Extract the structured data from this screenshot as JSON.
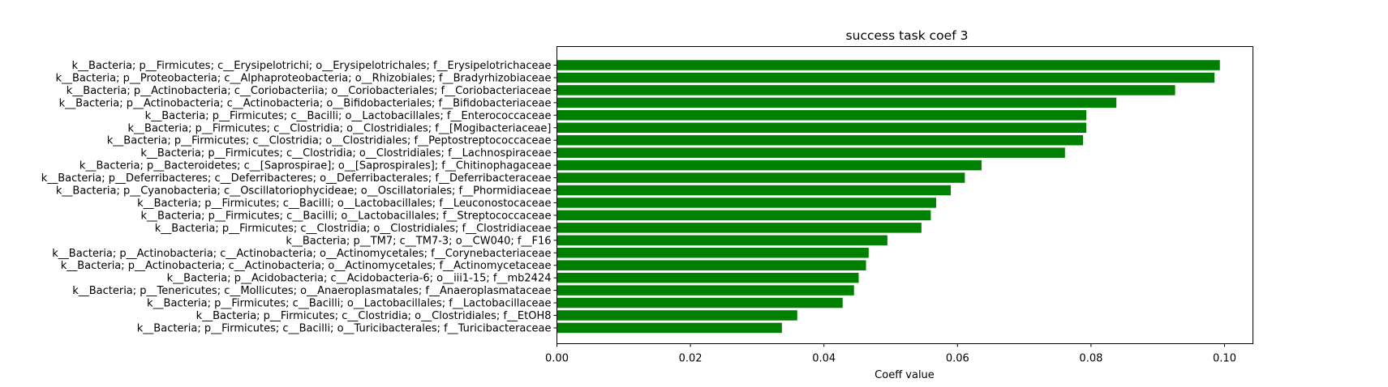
{
  "chart_data": {
    "type": "bar",
    "orientation": "horizontal",
    "title": "success task coef 3",
    "xlabel": "Coeff value",
    "ylabel": "",
    "xlim": [
      0.0,
      0.104
    ],
    "xticks": [
      "0.00",
      "0.02",
      "0.04",
      "0.06",
      "0.08",
      "0.10"
    ],
    "xtick_values": [
      0.0,
      0.02,
      0.04,
      0.06,
      0.08,
      0.1
    ],
    "bar_color": "#008000",
    "grid": false,
    "categories": [
      "k__Bacteria; p__Firmicutes; c__Erysipelotrichi; o__Erysipelotrichales; f__Erysipelotrichaceae",
      "k__Bacteria; p__Proteobacteria; c__Alphaproteobacteria; o__Rhizobiales; f__Bradyrhizobiaceae",
      "k__Bacteria; p__Actinobacteria; c__Coriobacteriia; o__Coriobacteriales; f__Coriobacteriaceae",
      "k__Bacteria; p__Actinobacteria; c__Actinobacteria; o__Bifidobacteriales; f__Bifidobacteriaceae",
      "k__Bacteria; p__Firmicutes; c__Bacilli; o__Lactobacillales; f__Enterococcaceae",
      "k__Bacteria; p__Firmicutes; c__Clostridia; o__Clostridiales; f__[Mogibacteriaceae]",
      "k__Bacteria; p__Firmicutes; c__Clostridia; o__Clostridiales; f__Peptostreptococcaceae",
      "k__Bacteria; p__Firmicutes; c__Clostridia; o__Clostridiales; f__Lachnospiraceae",
      "k__Bacteria; p__Bacteroidetes; c__[Saprospirae]; o__[Saprospirales]; f__Chitinophagaceae",
      "k__Bacteria; p__Deferribacteres; c__Deferribacteres; o__Deferribacterales; f__Deferribacteraceae",
      "k__Bacteria; p__Cyanobacteria; c__Oscillatoriophycideae; o__Oscillatoriales; f__Phormidiaceae",
      "k__Bacteria; p__Firmicutes; c__Bacilli; o__Lactobacillales; f__Leuconostocaceae",
      "k__Bacteria; p__Firmicutes; c__Bacilli; o__Lactobacillales; f__Streptococcaceae",
      "k__Bacteria; p__Firmicutes; c__Clostridia; o__Clostridiales; f__Clostridiaceae",
      "k__Bacteria; p__TM7; c__TM7-3; o__CW040; f__F16",
      "k__Bacteria; p__Actinobacteria; c__Actinobacteria; o__Actinomycetales; f__Corynebacteriaceae",
      "k__Bacteria; p__Actinobacteria; c__Actinobacteria; o__Actinomycetales; f__Actinomycetaceae",
      "k__Bacteria; p__Acidobacteria; c__Acidobacteria-6; o__iii1-15; f__mb2424",
      "k__Bacteria; p__Tenericutes; c__Mollicutes; o__Anaeroplasmatales; f__Anaeroplasmataceae",
      "k__Bacteria; p__Firmicutes; c__Bacilli; o__Lactobacillales; f__Lactobacillaceae",
      "k__Bacteria; p__Firmicutes; c__Clostridia; o__Clostridiales; f__EtOH8",
      "k__Bacteria; p__Firmicutes; c__Bacilli; o__Turicibacterales; f__Turicibacteraceae"
    ],
    "values": [
      0.0993,
      0.0985,
      0.0926,
      0.0838,
      0.0793,
      0.0793,
      0.0788,
      0.0761,
      0.0636,
      0.0611,
      0.059,
      0.0568,
      0.056,
      0.0546,
      0.0495,
      0.0467,
      0.0463,
      0.0452,
      0.0445,
      0.0428,
      0.036,
      0.0337
    ]
  }
}
